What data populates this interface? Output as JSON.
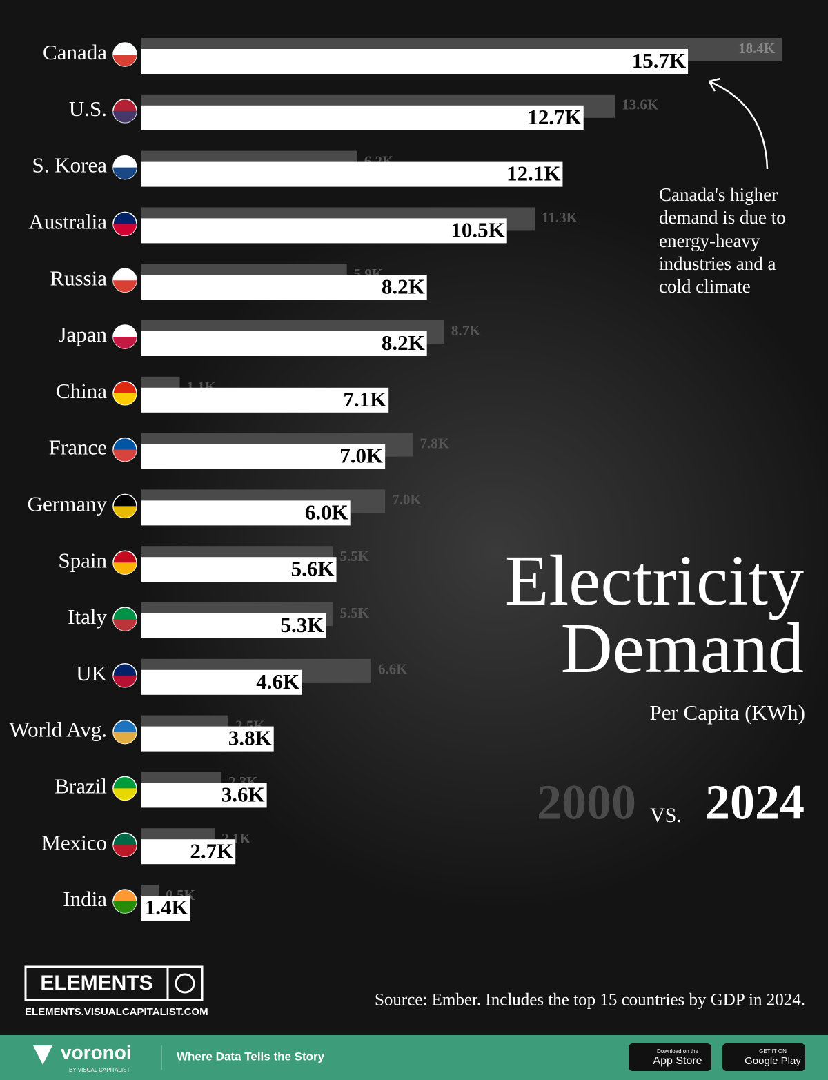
{
  "chart_data": {
    "type": "bar",
    "title": [
      "Electricity",
      "Demand"
    ],
    "subtitle": "Per Capita (KWh)",
    "legend_separator": "VS.",
    "categories": [
      "Canada",
      "U.S.",
      "S. Korea",
      "Australia",
      "Russia",
      "Japan",
      "China",
      "France",
      "Germany",
      "Spain",
      "Italy",
      "UK",
      "World Avg.",
      "Brazil",
      "Mexico",
      "India"
    ],
    "series": [
      {
        "name": "2000",
        "color": "#4a4a4a",
        "values": [
          18400,
          13600,
          6200,
          11300,
          5900,
          8700,
          1100,
          7800,
          7000,
          5500,
          5500,
          6600,
          2500,
          2300,
          2100,
          500
        ],
        "value_labels": [
          "18.4K",
          "13.6K",
          "6.2K",
          "11.3K",
          "5.9K",
          "8.7K",
          "1.1K",
          "7.8K",
          "7.0K",
          "5.5K",
          "5.5K",
          "6.6K",
          "2.5K",
          "2.3K",
          "2.1K",
          "0.5K"
        ]
      },
      {
        "name": "2024",
        "color": "#ffffff",
        "values": [
          15700,
          12700,
          12100,
          10500,
          8200,
          8200,
          7100,
          7000,
          6000,
          5600,
          5300,
          4600,
          3800,
          3600,
          2700,
          1400
        ],
        "value_labels": [
          "15.7K",
          "12.7K",
          "12.1K",
          "10.5K",
          "8.2K",
          "8.2K",
          "7.1K",
          "7.0K",
          "6.0K",
          "5.6K",
          "5.3K",
          "4.6K",
          "3.8K",
          "3.6K",
          "2.7K",
          "1.4K"
        ]
      }
    ],
    "annotation": [
      "Canada's higher",
      "demand is due to",
      "energy-heavy",
      "industries and a",
      "cold climate"
    ],
    "source": "Source: Ember. Includes the top 15 countries by GDP in 2024."
  },
  "branding": {
    "logo": "ELEMENTS",
    "url": "ELEMENTS.VISUALCAPITALIST.COM",
    "footer": {
      "brand": "voronoi",
      "byline": "BY VISUAL CAPITALIST",
      "tagline": "Where Data Tells the Story",
      "app_store_small": "Download on the",
      "app_store": "App Store",
      "google_small": "GET IT ON",
      "google": "Google Play"
    }
  }
}
